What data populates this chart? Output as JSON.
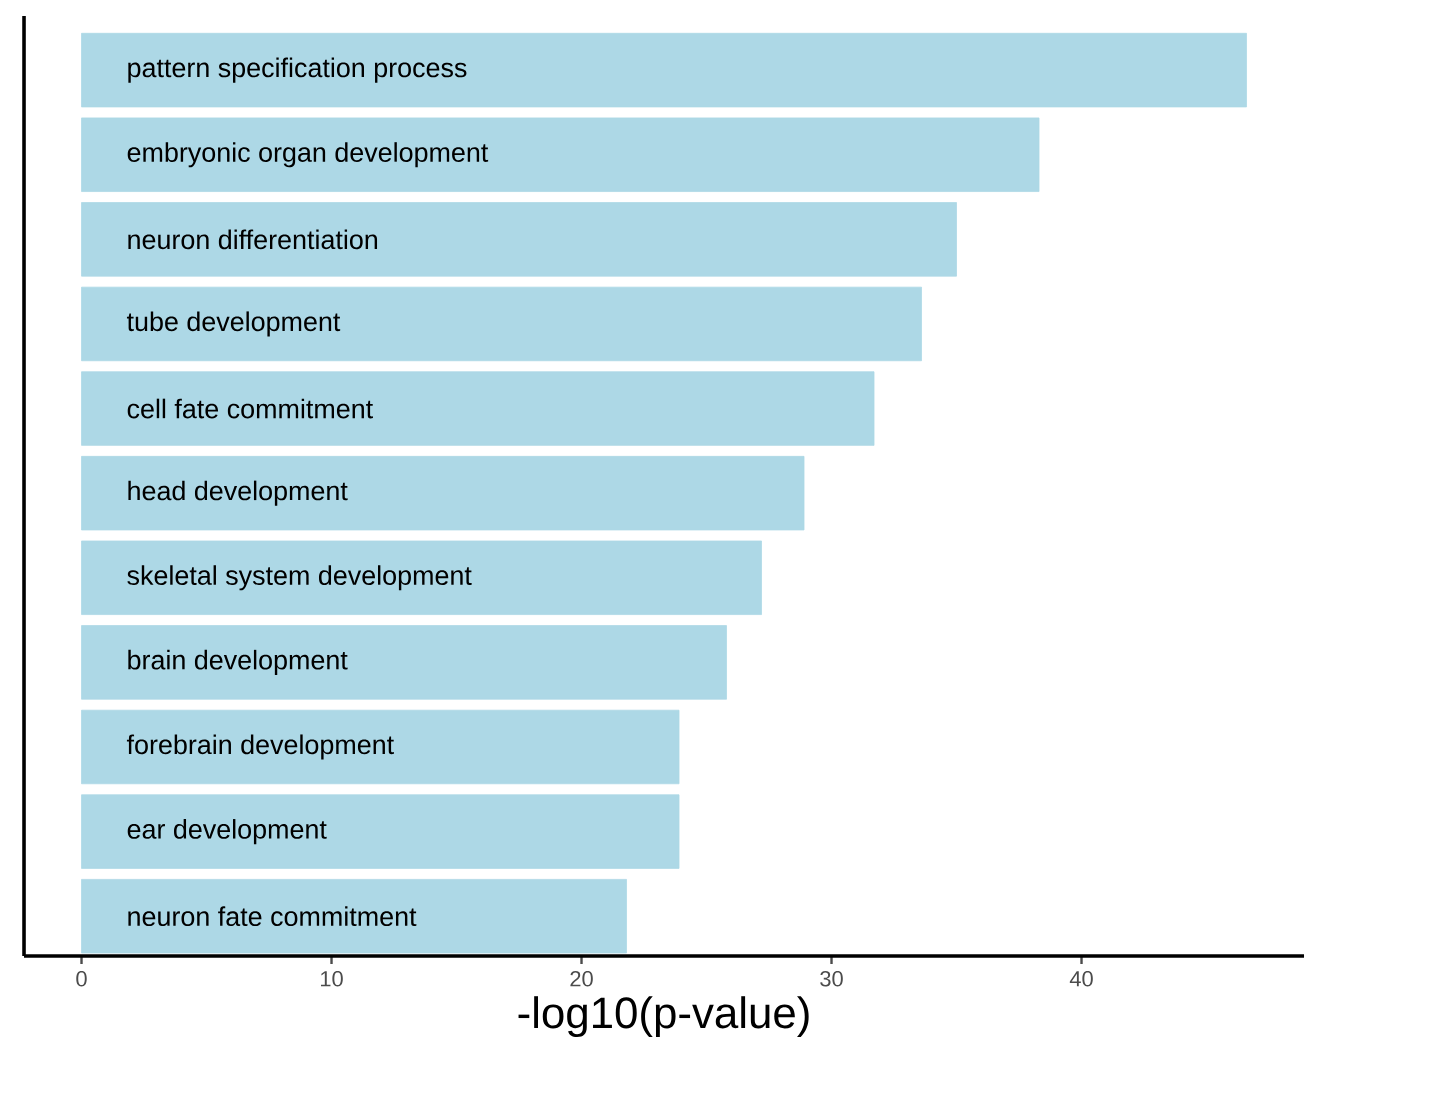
{
  "chart_data": {
    "type": "bar",
    "orientation": "horizontal",
    "xlabel": "-log10(p-value)",
    "categories": [
      "pattern specification process",
      "embryonic organ development",
      "neuron differentiation",
      "tube development",
      "cell fate commitment",
      "head development",
      "skeletal system development",
      "brain development",
      "forebrain development",
      "ear development",
      "neuron fate commitment"
    ],
    "values": [
      46.6,
      38.3,
      35.0,
      33.6,
      31.7,
      28.9,
      27.2,
      25.8,
      23.9,
      23.9,
      21.8
    ],
    "color": "#add8e6",
    "xlim": [
      -2.3,
      48.9
    ],
    "xticks": [
      0,
      10,
      20,
      30,
      40
    ],
    "grid": false
  }
}
